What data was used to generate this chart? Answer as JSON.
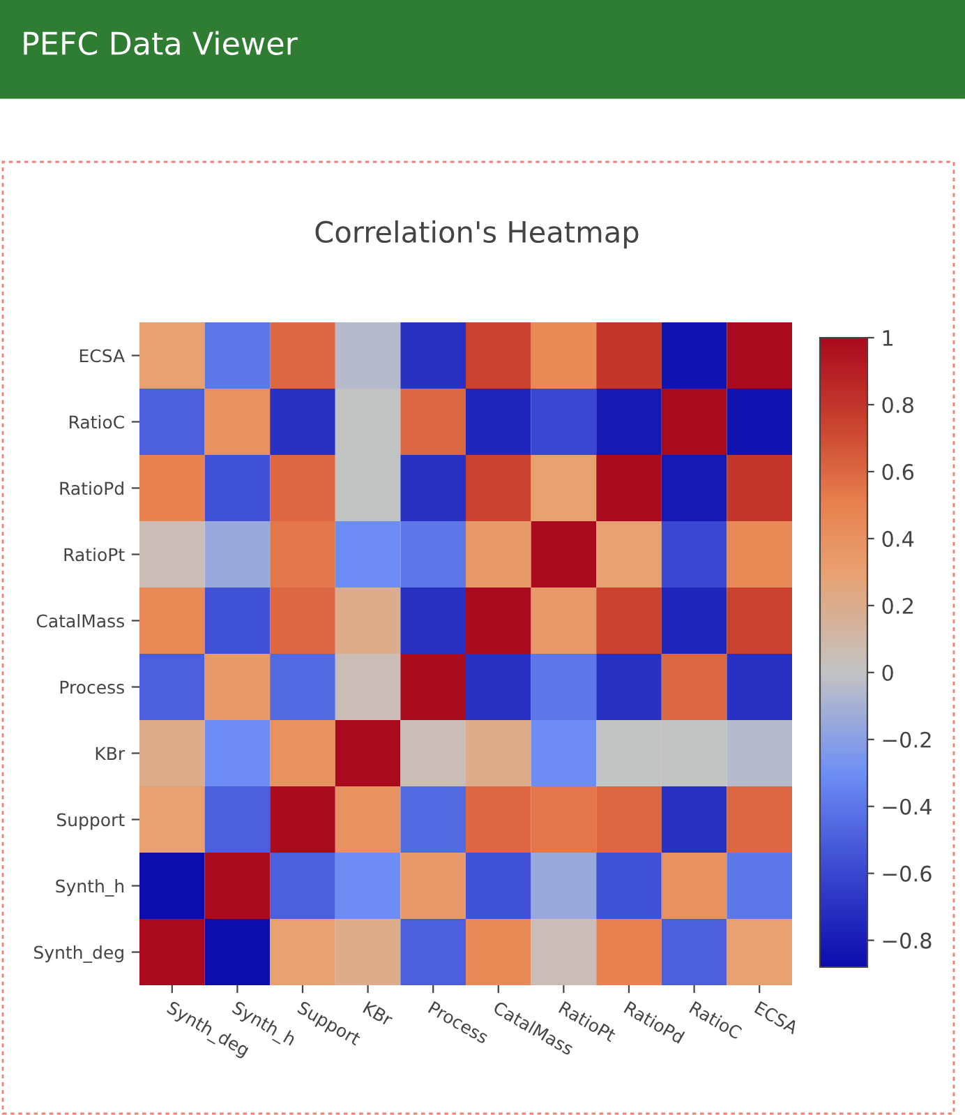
{
  "chart_data": {
    "type": "heatmap",
    "title": "Correlation's Heatmap",
    "annotations": [
      "PEFC Data Viewer"
    ],
    "categories": [
      "Synth_deg",
      "Synth_h",
      "Support",
      "KBr",
      "Process",
      "CatalMass",
      "RatioPt",
      "RatioPd",
      "RatioC",
      "ECSA"
    ],
    "y_categories": [
      "ECSA",
      "RatioC",
      "RatioPd",
      "RatioPt",
      "CatalMass",
      "Process",
      "KBr",
      "Support",
      "Synth_h",
      "Synth_deg"
    ],
    "cells": [
      [
        0.3,
        -0.4,
        0.6,
        -0.05,
        -0.7,
        0.75,
        0.45,
        0.8,
        -0.85,
        1
      ],
      [
        -0.5,
        0.4,
        -0.7,
        0,
        0.6,
        -0.75,
        -0.6,
        -0.82,
        1,
        -0.85
      ],
      [
        0.5,
        -0.55,
        0.6,
        0,
        -0.7,
        0.75,
        0.3,
        1,
        -0.82,
        0.8
      ],
      [
        0.05,
        -0.15,
        0.55,
        -0.3,
        -0.4,
        0.35,
        1,
        0.3,
        -0.6,
        0.45
      ],
      [
        0.45,
        -0.55,
        0.6,
        0.2,
        -0.7,
        1,
        0.35,
        0.75,
        -0.75,
        0.75
      ],
      [
        -0.5,
        0.35,
        -0.45,
        0.05,
        1,
        -0.7,
        -0.4,
        -0.7,
        0.6,
        -0.7
      ],
      [
        0.2,
        -0.3,
        0.4,
        1,
        0.05,
        0.2,
        -0.3,
        0,
        0,
        -0.05
      ],
      [
        0.3,
        -0.5,
        1,
        0.4,
        -0.45,
        0.6,
        0.55,
        0.6,
        -0.7,
        0.6
      ],
      [
        -0.88,
        1,
        -0.5,
        -0.3,
        0.35,
        -0.55,
        -0.15,
        -0.55,
        0.4,
        -0.4
      ],
      [
        1,
        -0.88,
        0.3,
        0.2,
        -0.5,
        0.45,
        0.05,
        0.5,
        -0.5,
        0.3
      ]
    ],
    "clim": [
      -0.88,
      1
    ],
    "cticks": [
      -0.8,
      -0.6,
      -0.4,
      -0.2,
      0,
      0.2,
      0.4,
      0.6,
      0.8,
      1
    ]
  }
}
